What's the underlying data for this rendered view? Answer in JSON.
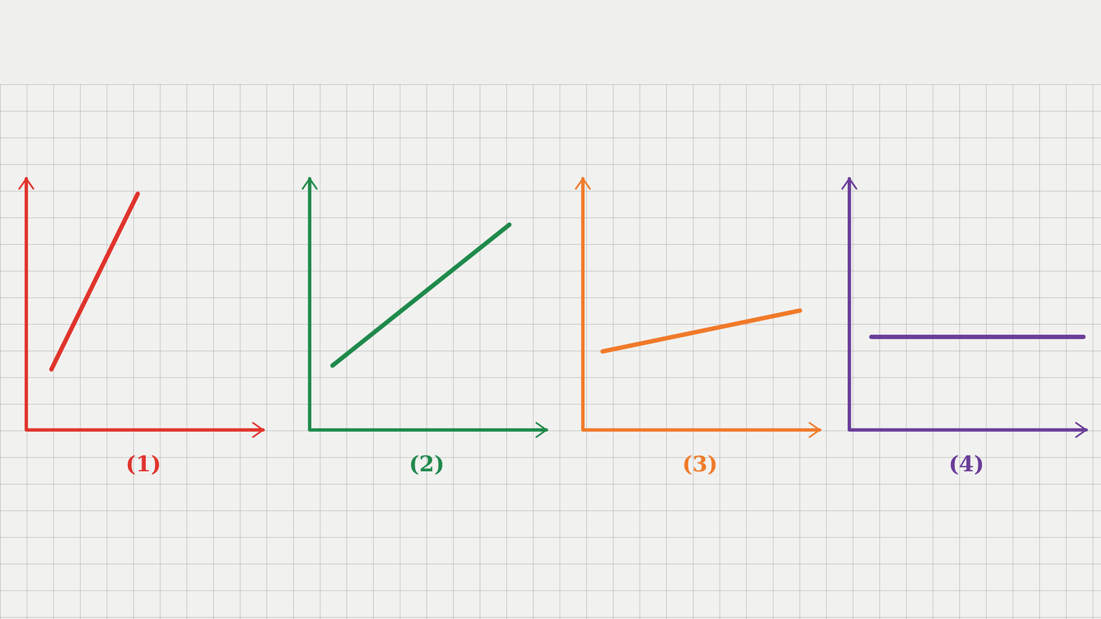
{
  "chart_data": [
    {
      "type": "line",
      "title": "(1)",
      "x": [
        0.9,
        4.0
      ],
      "values": [
        2.0,
        7.8
      ],
      "color": "#e0342c",
      "xlim": [
        0,
        8.5
      ],
      "ylim": [
        0,
        8.3
      ],
      "xticks": [],
      "yticks": [],
      "tick_labels": false,
      "grid": false
    },
    {
      "type": "line",
      "title": "(2)",
      "x": [
        0.8,
        7.0
      ],
      "values": [
        2.1,
        6.7
      ],
      "color": "#1f8a4c",
      "xlim": [
        0,
        8.3
      ],
      "ylim": [
        0,
        8.2
      ],
      "xticks": [],
      "yticks": [],
      "tick_labels": false,
      "grid": false
    },
    {
      "type": "line",
      "title": "(3)",
      "x": [
        0.7,
        7.7
      ],
      "values": [
        2.5,
        3.8
      ],
      "color": "#f07a2a",
      "xlim": [
        0,
        8.4
      ],
      "ylim": [
        0,
        8.0
      ],
      "xticks": [],
      "yticks": [],
      "tick_labels": false,
      "grid": false
    },
    {
      "type": "line",
      "title": "(4)",
      "x": [
        0.8,
        8.5
      ],
      "values": [
        3.0,
        3.0
      ],
      "color": "#6a3d9a",
      "xlim": [
        0,
        8.6
      ],
      "ylim": [
        0,
        8.1
      ],
      "xticks": [],
      "yticks": [],
      "tick_labels": false,
      "grid": false
    }
  ]
}
